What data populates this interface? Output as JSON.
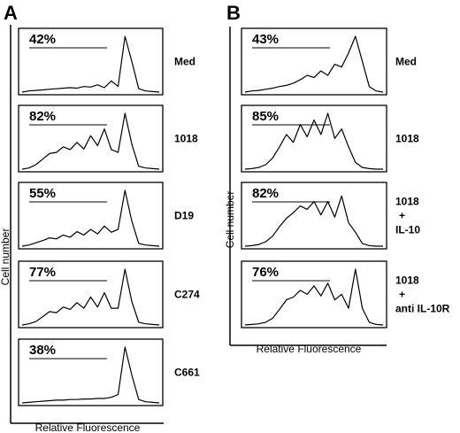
{
  "panel_a": {
    "letter": "A",
    "ylabel": "Cell number",
    "xlabel": "Relative Fluorescence",
    "plots": [
      {
        "percent": "42%",
        "label": "Med"
      },
      {
        "percent": "82%",
        "label": "1018"
      },
      {
        "percent": "55%",
        "label": "D19"
      },
      {
        "percent": "77%",
        "label": "C274"
      },
      {
        "percent": "38%",
        "label": "C661"
      }
    ]
  },
  "panel_b": {
    "letter": "B",
    "ylabel": "Cell number",
    "xlabel": "Relative Fluorescence",
    "plots": [
      {
        "percent": "43%",
        "label_lines": [
          "Med"
        ]
      },
      {
        "percent": "85%",
        "label_lines": [
          "1018"
        ]
      },
      {
        "percent": "82%",
        "label_lines": [
          "1018",
          "+",
          "IL-10"
        ]
      },
      {
        "percent": "76%",
        "label_lines": [
          "1018",
          "+",
          "anti IL-10R"
        ]
      }
    ]
  },
  "chart_data": [
    {
      "type": "area",
      "panel": "A",
      "xlabel": "Relative Fluorescence",
      "ylabel": "Cell number",
      "series": [
        {
          "name": "Med",
          "marker_percent": 42,
          "x": [
            0,
            0.05,
            0.1,
            0.15,
            0.2,
            0.25,
            0.3,
            0.35,
            0.4,
            0.45,
            0.5,
            0.55,
            0.6,
            0.65,
            0.7,
            0.75,
            0.8,
            0.85,
            0.9,
            0.95,
            1.0
          ],
          "values": [
            0,
            0.02,
            0.03,
            0.04,
            0.05,
            0.06,
            0.07,
            0.08,
            0.07,
            0.1,
            0.09,
            0.13,
            0.08,
            0.2,
            0.1,
            1.0,
            0.55,
            0.06,
            0.02,
            0.01,
            0
          ]
        },
        {
          "name": "1018",
          "marker_percent": 82,
          "x": [
            0,
            0.05,
            0.1,
            0.15,
            0.2,
            0.25,
            0.3,
            0.35,
            0.4,
            0.45,
            0.5,
            0.55,
            0.6,
            0.65,
            0.7,
            0.75,
            0.8,
            0.85,
            0.9,
            0.95,
            1.0
          ],
          "values": [
            0,
            0.02,
            0.08,
            0.18,
            0.28,
            0.3,
            0.4,
            0.35,
            0.48,
            0.36,
            0.6,
            0.42,
            0.72,
            0.35,
            0.3,
            1.0,
            0.45,
            0.05,
            0.02,
            0.01,
            0
          ]
        },
        {
          "name": "D19",
          "marker_percent": 55,
          "x": [
            0,
            0.05,
            0.1,
            0.15,
            0.2,
            0.25,
            0.3,
            0.35,
            0.4,
            0.45,
            0.5,
            0.55,
            0.6,
            0.65,
            0.7,
            0.75,
            0.8,
            0.85,
            0.9,
            0.95,
            1.0
          ],
          "values": [
            0,
            0.02,
            0.06,
            0.1,
            0.15,
            0.13,
            0.2,
            0.16,
            0.26,
            0.2,
            0.3,
            0.22,
            0.36,
            0.25,
            0.3,
            1.0,
            0.45,
            0.05,
            0.02,
            0.01,
            0
          ]
        },
        {
          "name": "C274",
          "marker_percent": 77,
          "x": [
            0,
            0.05,
            0.1,
            0.15,
            0.2,
            0.25,
            0.3,
            0.35,
            0.4,
            0.45,
            0.5,
            0.55,
            0.6,
            0.65,
            0.7,
            0.75,
            0.8,
            0.85,
            0.9,
            0.95,
            1.0
          ],
          "values": [
            0,
            0.02,
            0.06,
            0.15,
            0.24,
            0.22,
            0.32,
            0.28,
            0.4,
            0.3,
            0.5,
            0.32,
            0.58,
            0.3,
            0.3,
            1.0,
            0.42,
            0.05,
            0.02,
            0.01,
            0
          ]
        },
        {
          "name": "C661",
          "marker_percent": 38,
          "x": [
            0,
            0.05,
            0.1,
            0.15,
            0.2,
            0.25,
            0.3,
            0.35,
            0.4,
            0.45,
            0.5,
            0.55,
            0.6,
            0.65,
            0.7,
            0.75,
            0.8,
            0.85,
            0.9,
            0.95,
            1.0
          ],
          "values": [
            0,
            0.01,
            0.02,
            0.03,
            0.04,
            0.05,
            0.05,
            0.06,
            0.06,
            0.07,
            0.07,
            0.08,
            0.08,
            0.1,
            0.15,
            1.0,
            0.5,
            0.06,
            0.02,
            0.01,
            0
          ]
        }
      ]
    },
    {
      "type": "area",
      "panel": "B",
      "xlabel": "Relative Fluorescence",
      "ylabel": "Cell number",
      "series": [
        {
          "name": "Med",
          "marker_percent": 43,
          "x": [
            0,
            0.05,
            0.1,
            0.15,
            0.2,
            0.25,
            0.3,
            0.35,
            0.4,
            0.45,
            0.5,
            0.55,
            0.6,
            0.65,
            0.7,
            0.75,
            0.8,
            0.85,
            0.9,
            0.95,
            1.0
          ],
          "values": [
            0,
            0.02,
            0.03,
            0.05,
            0.07,
            0.1,
            0.12,
            0.16,
            0.22,
            0.3,
            0.26,
            0.38,
            0.3,
            0.5,
            0.45,
            0.7,
            1.0,
            0.55,
            0.1,
            0.02,
            0
          ]
        },
        {
          "name": "1018",
          "marker_percent": 85,
          "x": [
            0,
            0.05,
            0.1,
            0.15,
            0.2,
            0.25,
            0.3,
            0.35,
            0.4,
            0.45,
            0.5,
            0.55,
            0.6,
            0.65,
            0.7,
            0.75,
            0.8,
            0.85,
            0.9,
            0.95,
            1.0
          ],
          "values": [
            0,
            0.01,
            0.03,
            0.08,
            0.2,
            0.4,
            0.62,
            0.48,
            0.8,
            0.58,
            0.88,
            0.62,
            1.0,
            0.55,
            0.72,
            0.4,
            0.12,
            0.03,
            0.01,
            0,
            0
          ]
        },
        {
          "name": "1018 + IL-10",
          "marker_percent": 82,
          "x": [
            0,
            0.05,
            0.1,
            0.15,
            0.2,
            0.25,
            0.3,
            0.35,
            0.4,
            0.45,
            0.5,
            0.55,
            0.6,
            0.65,
            0.7,
            0.75,
            0.8,
            0.85,
            0.9,
            0.95,
            1.0
          ],
          "values": [
            0,
            0.01,
            0.03,
            0.08,
            0.18,
            0.35,
            0.5,
            0.6,
            0.72,
            0.66,
            0.8,
            0.56,
            0.8,
            0.52,
            0.9,
            0.42,
            0.25,
            0.05,
            0.01,
            0,
            0
          ]
        },
        {
          "name": "1018 + anti IL-10R",
          "marker_percent": 76,
          "x": [
            0,
            0.05,
            0.1,
            0.15,
            0.2,
            0.25,
            0.3,
            0.35,
            0.4,
            0.45,
            0.5,
            0.55,
            0.6,
            0.65,
            0.7,
            0.75,
            0.8,
            0.85,
            0.9,
            0.95,
            1.0
          ],
          "values": [
            0,
            0.01,
            0.02,
            0.05,
            0.12,
            0.28,
            0.45,
            0.5,
            0.62,
            0.55,
            0.7,
            0.52,
            0.75,
            0.45,
            0.55,
            0.3,
            1.0,
            0.3,
            0.05,
            0.01,
            0
          ]
        }
      ]
    }
  ]
}
